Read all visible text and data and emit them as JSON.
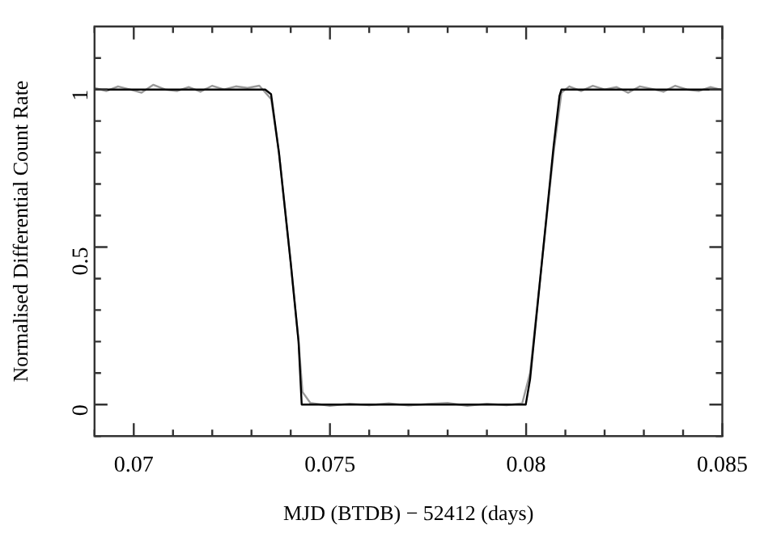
{
  "chart_data": {
    "type": "line",
    "xlabel": "MJD (BTDB) − 52412 (days)",
    "ylabel": "Normalised Differential Count Rate",
    "xlim": [
      0.069,
      0.085
    ],
    "ylim": [
      -0.1,
      1.2
    ],
    "xticks": [
      {
        "value": 0.069,
        "label": null
      },
      0.07,
      {
        "value": 0.071,
        "label": null
      },
      {
        "value": 0.072,
        "label": null
      },
      {
        "value": 0.073,
        "label": null
      },
      {
        "value": 0.074,
        "label": null
      },
      0.075,
      {
        "value": 0.076,
        "label": null
      },
      {
        "value": 0.077,
        "label": null
      },
      {
        "value": 0.078,
        "label": null
      },
      {
        "value": 0.079,
        "label": null
      },
      0.08,
      {
        "value": 0.081,
        "label": null
      },
      {
        "value": 0.082,
        "label": null
      },
      {
        "value": 0.083,
        "label": null
      },
      {
        "value": 0.084,
        "label": null
      },
      0.085
    ],
    "yticks": [
      {
        "value": -0.1,
        "label": null
      },
      0,
      {
        "value": 0.1,
        "label": null
      },
      {
        "value": 0.2,
        "label": null
      },
      {
        "value": 0.3,
        "label": null
      },
      {
        "value": 0.4,
        "label": null
      },
      0.5,
      {
        "value": 0.6,
        "label": null
      },
      {
        "value": 0.7,
        "label": null
      },
      {
        "value": 0.8,
        "label": null
      },
      {
        "value": 0.9,
        "label": null
      },
      1,
      {
        "value": 1.1,
        "label": null
      }
    ],
    "grid": false,
    "legend": false,
    "marker": "none",
    "line_style": "solid",
    "series": [
      {
        "color": "#999999",
        "x": [
          0.069,
          0.0693,
          0.0696,
          0.0699,
          0.0702,
          0.0705,
          0.0708,
          0.0711,
          0.0714,
          0.0717,
          0.072,
          0.0723,
          0.0726,
          0.0729,
          0.0732,
          0.0735,
          0.0737,
          0.074,
          0.0742,
          0.0743,
          0.0745,
          0.075,
          0.0755,
          0.076,
          0.0765,
          0.077,
          0.0775,
          0.078,
          0.0785,
          0.079,
          0.0795,
          0.0799,
          0.0801,
          0.0804,
          0.0807,
          0.0809,
          0.0811,
          0.0814,
          0.0817,
          0.082,
          0.0823,
          0.0826,
          0.0829,
          0.0832,
          0.0835,
          0.0838,
          0.0841,
          0.0844,
          0.0847,
          0.085
        ],
        "values": [
          1.005,
          0.995,
          1.01,
          1.0,
          0.99,
          1.015,
          1.0,
          0.995,
          1.008,
          0.993,
          1.012,
          1.0,
          1.01,
          1.005,
          1.012,
          0.97,
          0.8,
          0.45,
          0.2,
          0.04,
          0.005,
          -0.004,
          0.003,
          -0.002,
          0.004,
          -0.003,
          0.002,
          0.005,
          -0.004,
          0.003,
          -0.002,
          0.004,
          0.1,
          0.45,
          0.8,
          0.99,
          1.01,
          0.995,
          1.012,
          1.0,
          1.008,
          0.99,
          1.01,
          1.002,
          0.993,
          1.012,
          1.0,
          0.995,
          1.008,
          0.998
        ]
      },
      {
        "color": "#000000",
        "x": [
          0.069,
          0.07335,
          0.0735,
          0.0737,
          0.074,
          0.0742,
          0.07428,
          0.07999,
          0.0801,
          0.0804,
          0.0807,
          0.08085,
          0.0809,
          0.085
        ],
        "values": [
          1,
          1,
          0.985,
          0.8,
          0.45,
          0.2,
          0,
          0,
          0.08,
          0.45,
          0.82,
          0.98,
          1,
          1
        ]
      }
    ]
  }
}
